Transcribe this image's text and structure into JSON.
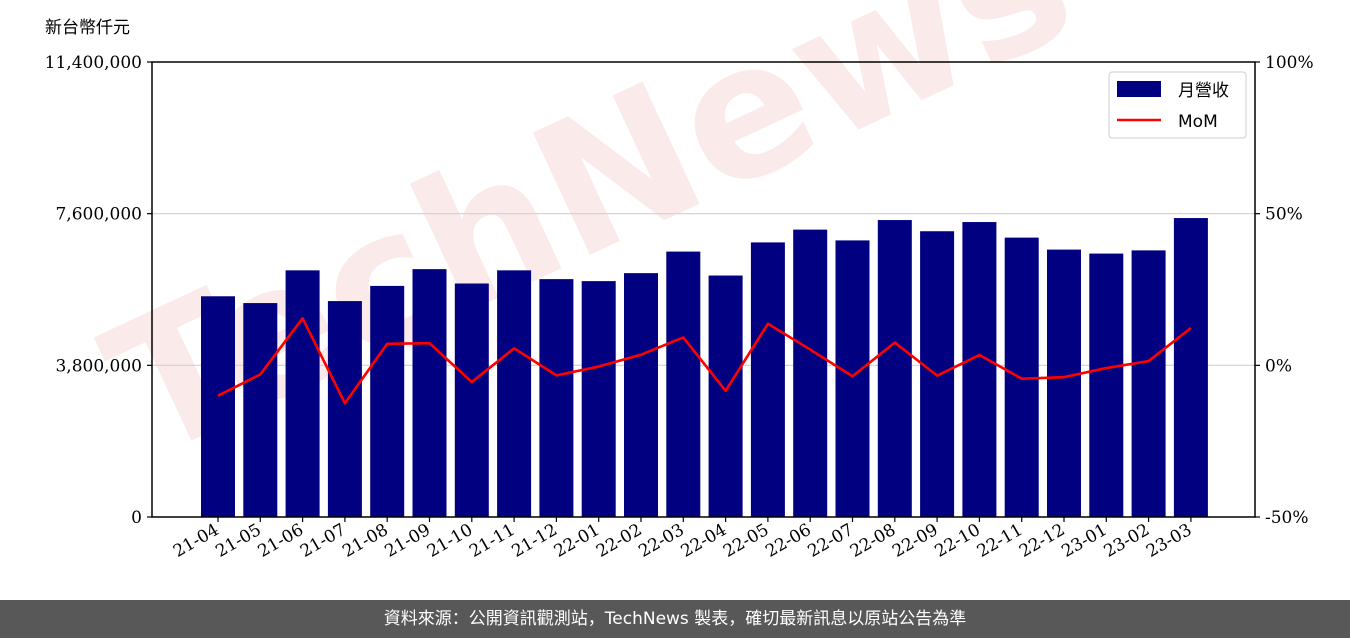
{
  "chart_data": {
    "type": "bar",
    "y_unit_label": "新台幣仟元",
    "categories": [
      "21-04",
      "21-05",
      "21-06",
      "21-07",
      "21-08",
      "21-09",
      "21-10",
      "21-11",
      "21-12",
      "22-01",
      "22-02",
      "22-03",
      "22-04",
      "22-05",
      "22-06",
      "22-07",
      "22-08",
      "22-09",
      "22-10",
      "22-11",
      "22-12",
      "23-01",
      "23-02",
      "23-03"
    ],
    "series": [
      {
        "name": "月營收",
        "kind": "bar",
        "axis": "left",
        "color": "#000080",
        "values": [
          5530000,
          5360000,
          6180000,
          5410000,
          5790000,
          6210000,
          5850000,
          6180000,
          5960000,
          5910000,
          6110000,
          6650000,
          6050000,
          6880000,
          7200000,
          6930000,
          7440000,
          7160000,
          7390000,
          7000000,
          6700000,
          6600000,
          6680000,
          7490000
        ]
      },
      {
        "name": "MoM",
        "kind": "line",
        "axis": "right",
        "color": "#ff0000",
        "values": [
          -10,
          -3,
          15.5,
          -12.5,
          7.1,
          7.3,
          -5.5,
          5.6,
          -3.3,
          -0.4,
          3.5,
          9.2,
          -8.4,
          13.7,
          5.2,
          -3.6,
          7.5,
          -3.4,
          3.4,
          -4.4,
          -3.9,
          -0.9,
          1.4,
          12.3
        ]
      }
    ],
    "y_left": {
      "ylim": [
        0,
        11400000
      ],
      "ticks": [
        "0",
        "3,800,000",
        "7,600,000",
        "11,400,000"
      ],
      "tick_values": [
        0,
        3800000,
        7600000,
        11400000
      ]
    },
    "y_right": {
      "ylim": [
        -50,
        100
      ],
      "ticks": [
        "-50%",
        "0%",
        "50%",
        "100%"
      ],
      "tick_values": [
        -50,
        0,
        50,
        100
      ]
    },
    "grid": "horizontal",
    "legend": "top-right",
    "watermark": "TechNews"
  },
  "footer": {
    "text": "資料來源：公開資訊觀測站，TechNews 製表，確切最新訊息以原站公告為準"
  }
}
